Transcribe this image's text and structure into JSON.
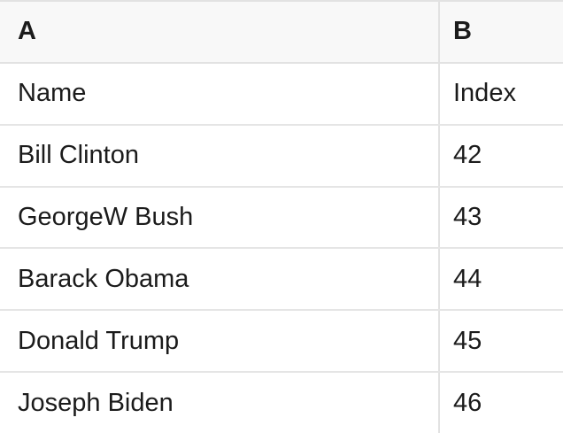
{
  "table": {
    "columns": [
      {
        "label": "A"
      },
      {
        "label": "B"
      }
    ],
    "rows": [
      {
        "a": "Name",
        "b": "Index"
      },
      {
        "a": "Bill Clinton",
        "b": "42"
      },
      {
        "a": "GeorgeW Bush",
        "b": "43"
      },
      {
        "a": "Barack Obama",
        "b": "44"
      },
      {
        "a": "Donald Trump",
        "b": "45"
      },
      {
        "a": "Joseph Biden",
        "b": "46"
      }
    ]
  },
  "colors": {
    "header_background": "#f8f8f8",
    "border": "#e2e2e2",
    "text": "#1b1b1b"
  }
}
